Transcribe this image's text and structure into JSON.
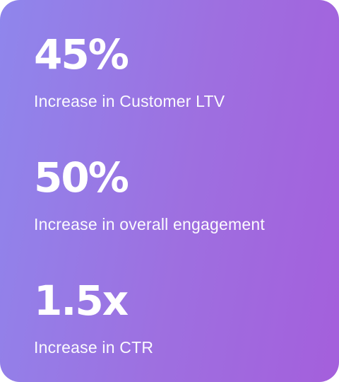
{
  "stats": [
    {
      "value": "45%",
      "label": "Increase in Customer LTV"
    },
    {
      "value": "50%",
      "label": "Increase in overall engagement"
    },
    {
      "value": "1.5x",
      "label": "Increase in CTR"
    }
  ],
  "colors": {
    "gradient_start": "#8f86ec",
    "gradient_end": "#a45fdc",
    "text": "#ffffff"
  }
}
